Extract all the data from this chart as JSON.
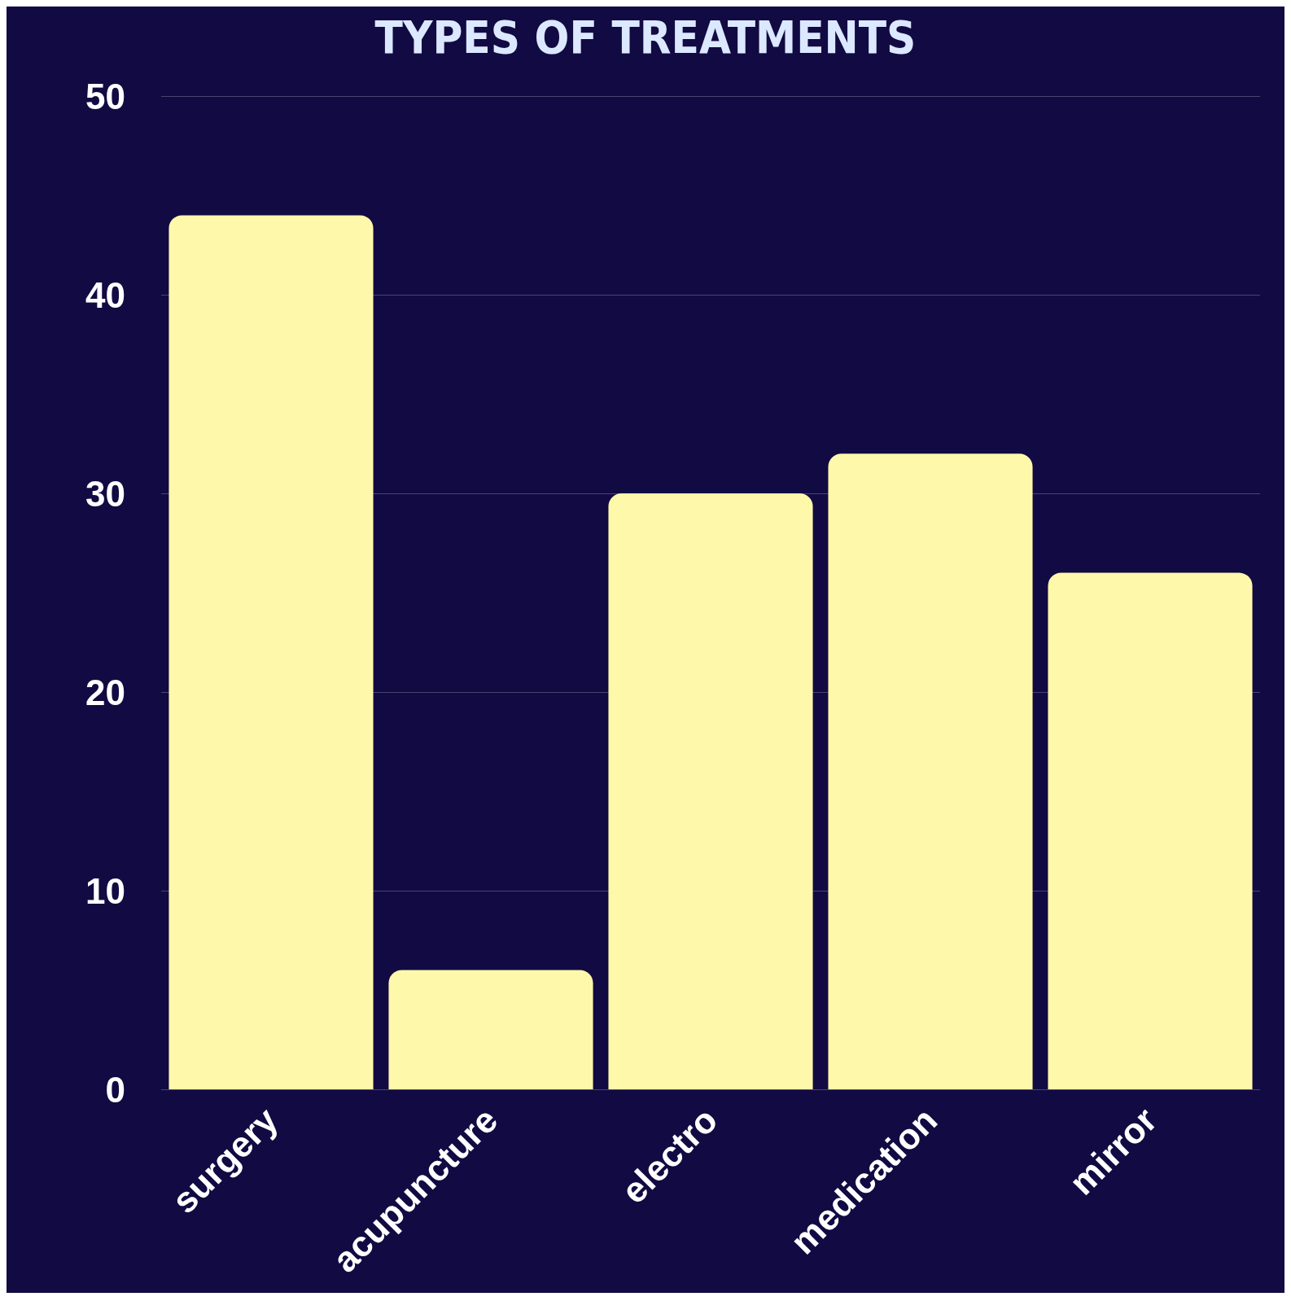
{
  "chart_data": {
    "type": "bar",
    "title": "TYPES OF TREATMENTS",
    "categories": [
      "surgery",
      "acupuncture",
      "electro",
      "medication",
      "mirror"
    ],
    "values": [
      44,
      6,
      30,
      32,
      26
    ],
    "color": "#fef8ab",
    "ylim": [
      0,
      50
    ],
    "yticks": [
      0,
      10,
      20,
      30,
      40,
      50
    ],
    "grid": "y"
  }
}
